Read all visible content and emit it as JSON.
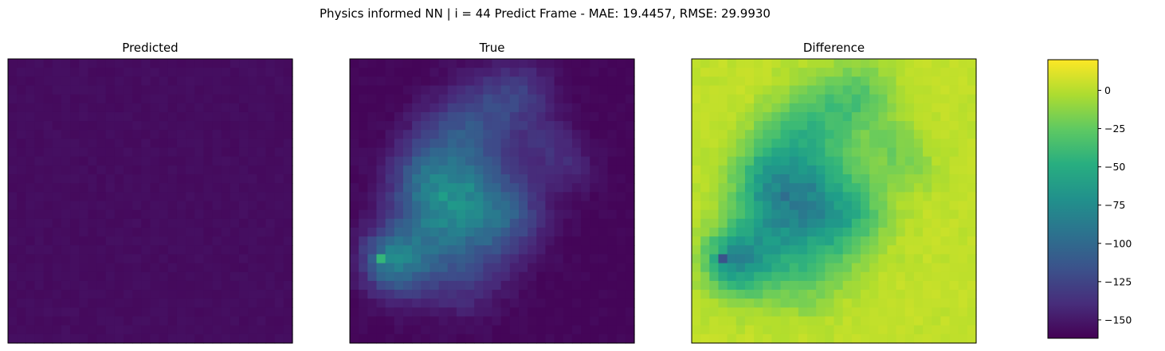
{
  "chart_data": {
    "type": "heatmap",
    "suptitle": "Physics informed NN | i = 44 Predict Frame - MAE: 19.4457, RMSE: 29.9930",
    "colormap": "viridis",
    "grid": {
      "rows": 32,
      "cols": 32
    },
    "panels": [
      {
        "title": "Predicted",
        "field": "predicted",
        "value_range": [
          -160,
          -150
        ]
      },
      {
        "title": "True",
        "field": "true",
        "value_range": [
          -160,
          -40
        ]
      },
      {
        "title": "Difference",
        "field": "difference",
        "value_range": [
          -160,
          20
        ]
      }
    ],
    "colorbar": {
      "vmin": -162,
      "vmax": 20,
      "ticks": [
        0,
        -25,
        -50,
        -75,
        -100,
        -125,
        -150
      ],
      "tick_labels": [
        "0",
        "−25",
        "−50",
        "−75",
        "−100",
        "−125",
        "−150"
      ]
    },
    "metrics": {
      "MAE": 19.4457,
      "RMSE": 29.993,
      "frame_index": 44
    }
  }
}
